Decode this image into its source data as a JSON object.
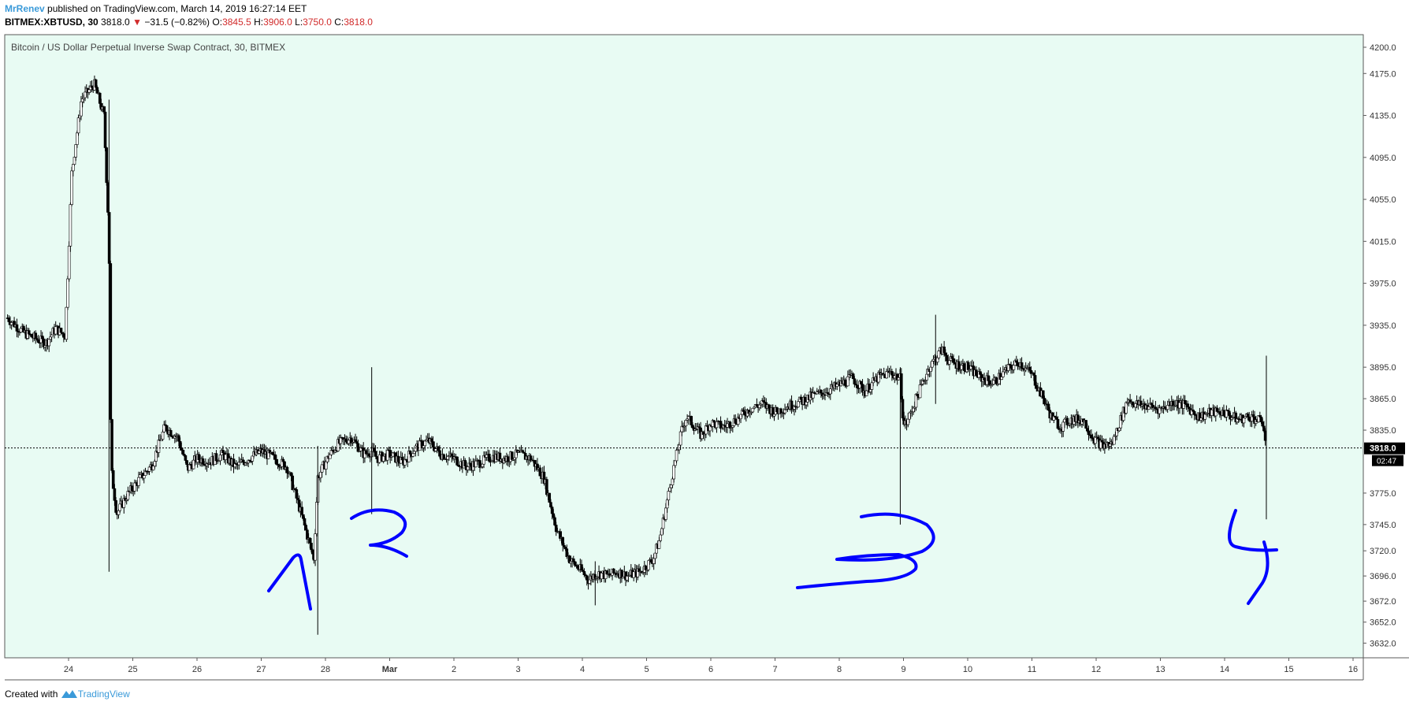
{
  "header": {
    "author": "MrRenev",
    "published_text": "published on TradingView.com, March 14, 2019 16:27:14 EET",
    "symbol": "BITMEX:XBTUSD, 30",
    "last": "3818.0",
    "change_arrow": "▼",
    "change": "−31.5 (−0.82%)",
    "o_label": "O:",
    "o_value": "3845.5",
    "h_label": "H:",
    "h_value": "3906.0",
    "l_label": "L:",
    "l_value": "3750.0",
    "c_label": "C:",
    "c_value": "3818.0"
  },
  "footer": {
    "created_with": "Created with",
    "brand": "TradingView"
  },
  "chart_data": {
    "type": "candlestick",
    "title": "Bitcoin / US Dollar Perpetual Inverse Swap Contract, 30, BITMEX",
    "background": "#e8fbf3",
    "ylim": [
      3618,
      4212
    ],
    "y_ticks": [
      "4200.0",
      "4175.0",
      "4135.0",
      "4095.0",
      "4055.0",
      "4015.0",
      "3975.0",
      "3935.0",
      "3895.0",
      "3865.0",
      "3835.0",
      "3775.0",
      "3745.0",
      "3720.0",
      "3696.0",
      "3672.0",
      "3652.0",
      "3632.0"
    ],
    "x_ticks": [
      "24",
      "25",
      "26",
      "27",
      "28",
      "Mar",
      "2",
      "3",
      "4",
      "5",
      "6",
      "7",
      "8",
      "9",
      "10",
      "11",
      "12",
      "13",
      "14",
      "15",
      "16"
    ],
    "x_tick_days": [
      24,
      25,
      26,
      27,
      28,
      29,
      30,
      31,
      32,
      33,
      34,
      35,
      36,
      37,
      38,
      39,
      40,
      41,
      42,
      43,
      44
    ],
    "last_price_label": "3818.0",
    "countdown_label": "02:47",
    "last_price": 3818,
    "series": [
      {
        "x_days": [
          23.05,
          23.3,
          23.5,
          23.65,
          23.8,
          23.95,
          24.05,
          24.2,
          24.4,
          24.55,
          24.63,
          24.66,
          24.75,
          24.9,
          25.1,
          25.3,
          25.5,
          25.7,
          25.85,
          26.0,
          26.2,
          26.4,
          26.6,
          26.8,
          27.0,
          27.2,
          27.4,
          27.6,
          27.82,
          27.88,
          28.05,
          28.2,
          28.4,
          28.6,
          28.72,
          28.8,
          29.0,
          29.2,
          29.4,
          29.6,
          29.8,
          30.0,
          30.2,
          30.4,
          30.6,
          30.8,
          31.0,
          31.2,
          31.4,
          31.6,
          31.8,
          32.0,
          32.1,
          32.2,
          32.3,
          32.4,
          32.55,
          32.7,
          32.9,
          33.1,
          33.2,
          33.4,
          33.55,
          33.62,
          33.7,
          33.85,
          34.0,
          34.2,
          34.4,
          34.6,
          34.8,
          35.0,
          35.2,
          35.4,
          35.6,
          35.8,
          36.0,
          36.2,
          36.4,
          36.6,
          36.8,
          36.95,
          37.0,
          37.05,
          37.2,
          37.4,
          37.6,
          37.7,
          37.8,
          38.0,
          38.2,
          38.4,
          38.6,
          38.8,
          39.0,
          39.2,
          39.3,
          39.45,
          39.6,
          39.8,
          39.95,
          40.1,
          40.25,
          40.4,
          40.5,
          40.6,
          40.8,
          41.0,
          41.2,
          41.4,
          41.6,
          41.8,
          42.0,
          42.2,
          42.4,
          42.6,
          42.65
        ],
        "values": [
          3942,
          3928,
          3922,
          3918,
          3932,
          3925,
          4080,
          4150,
          4165,
          4135,
          4020,
          3800,
          3755,
          3772,
          3788,
          3802,
          3838,
          3828,
          3798,
          3808,
          3805,
          3812,
          3800,
          3808,
          3815,
          3808,
          3800,
          3760,
          3712,
          3790,
          3810,
          3822,
          3828,
          3812,
          3815,
          3808,
          3812,
          3804,
          3818,
          3825,
          3812,
          3808,
          3800,
          3804,
          3810,
          3808,
          3812,
          3808,
          3790,
          3740,
          3712,
          3700,
          3692,
          3698,
          3698,
          3696,
          3700,
          3696,
          3700,
          3712,
          3730,
          3792,
          3835,
          3848,
          3842,
          3830,
          3842,
          3838,
          3845,
          3855,
          3860,
          3852,
          3858,
          3862,
          3868,
          3872,
          3878,
          3885,
          3872,
          3885,
          3890,
          3884,
          3840,
          3842,
          3865,
          3895,
          3912,
          3902,
          3898,
          3895,
          3885,
          3880,
          3892,
          3900,
          3888,
          3862,
          3848,
          3838,
          3845,
          3845,
          3828,
          3820,
          3822,
          3848,
          3865,
          3860,
          3858,
          3855,
          3862,
          3858,
          3848,
          3852,
          3852,
          3845,
          3848,
          3842,
          3818
        ]
      }
    ]
  },
  "annotations": [
    "1",
    "2",
    "3",
    "4"
  ],
  "colors": {
    "accent": "#3a9ad9",
    "down": "#d12b2b",
    "candle": "#000000",
    "ink": "#0000ff"
  }
}
